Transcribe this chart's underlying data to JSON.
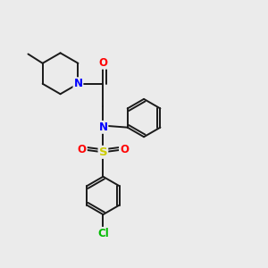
{
  "background_color": "#ebebeb",
  "bond_color": "#1a1a1a",
  "bond_width": 1.4,
  "atom_colors": {
    "N": "#0000ff",
    "O": "#ff0000",
    "S": "#cccc00",
    "Cl": "#00bb00",
    "C": "#1a1a1a"
  },
  "font_size": 8.5,
  "fig_width": 3.0,
  "fig_height": 3.0,
  "dpi": 100,
  "xlim": [
    0,
    10
  ],
  "ylim": [
    0,
    10
  ]
}
